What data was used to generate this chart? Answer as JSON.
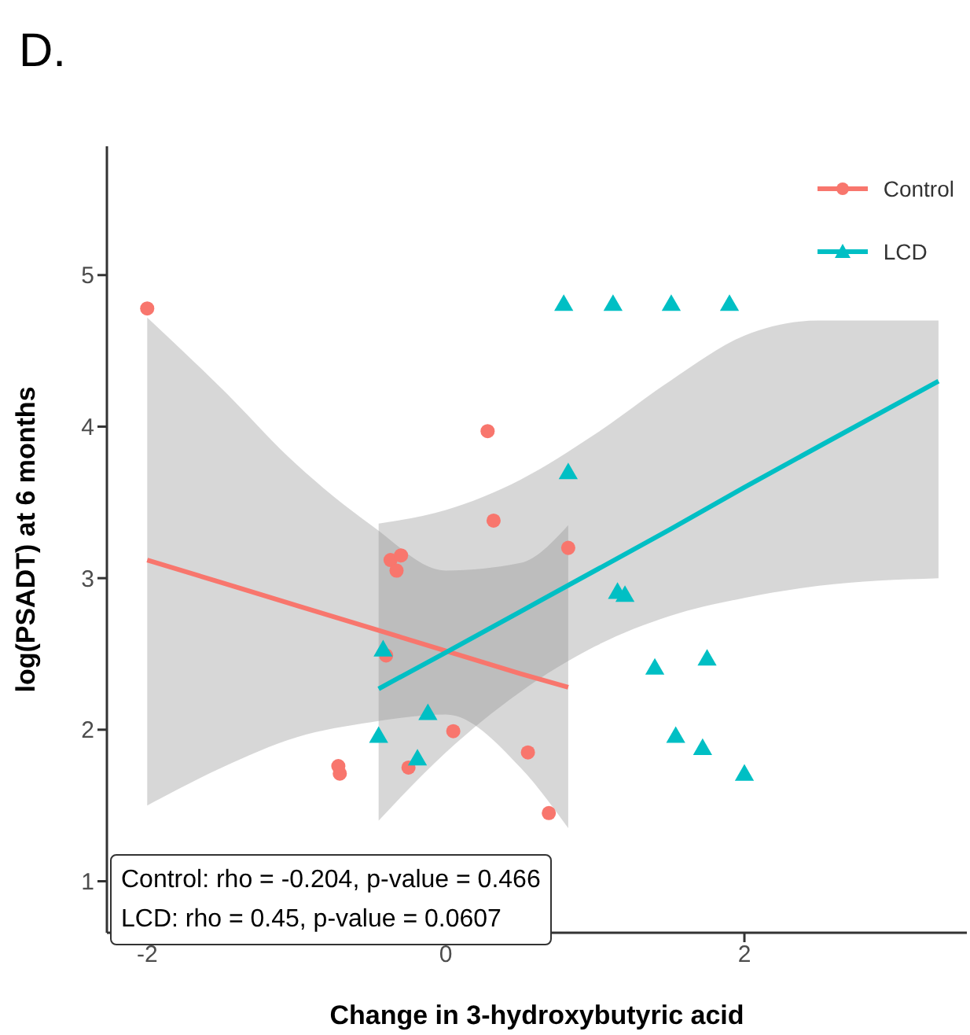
{
  "chart_data": {
    "type": "scatter",
    "title": "D.",
    "xlabel": "Change in 3-hydroxybutyric acid",
    "ylabel": "log(PSADT) at 6 months",
    "xlim": [
      -2.27,
      3.49
    ],
    "ylim": [
      0.66,
      5.85
    ],
    "xticks": [
      -2,
      0,
      2
    ],
    "yticks": [
      1,
      2,
      3,
      4,
      5
    ],
    "grid": false,
    "legend": "top right",
    "annotations": [
      "Control: rho = -0.204, p-value = 0.466",
      "LCD: rho = 0.45, p-value = 0.0607"
    ],
    "series": [
      {
        "name": "Control",
        "type": "scatter",
        "marker": "circle",
        "color": "#f8766d",
        "x": [
          -2,
          0.28,
          0.32,
          -0.37,
          -0.3,
          -0.33,
          0.82,
          -0.4,
          0.05,
          -0.25,
          0.55,
          0.69,
          -0.71,
          -0.72
        ],
        "values": [
          4.78,
          3.97,
          3.38,
          3.12,
          3.15,
          3.05,
          3.2,
          2.49,
          1.99,
          1.75,
          1.85,
          1.45,
          1.71,
          1.76
        ]
      },
      {
        "name": "LCD",
        "type": "scatter",
        "marker": "triangle",
        "color": "#00bfc4",
        "x": [
          0.79,
          1.12,
          1.51,
          1.9,
          0.82,
          1.15,
          1.2,
          -0.42,
          1.4,
          1.75,
          -0.12,
          -0.45,
          -0.19,
          1.54,
          1.72,
          2.0
        ],
        "values": [
          4.8,
          4.8,
          4.8,
          4.8,
          3.69,
          2.9,
          2.88,
          2.52,
          2.4,
          2.46,
          2.1,
          1.95,
          1.8,
          1.95,
          1.87,
          1.7
        ]
      },
      {
        "type": "line",
        "color": "#f8766d",
        "x": [
          -2,
          -1.5,
          -1,
          -0.5,
          0,
          0.5,
          0.82
        ],
        "values": [
          3.12,
          2.97,
          2.82,
          2.67,
          2.52,
          2.37,
          2.28
        ],
        "lower": [
          1.5,
          1.75,
          1.95,
          2.05,
          2.1,
          1.75,
          1.35
        ],
        "upper": [
          4.72,
          4.25,
          3.75,
          3.35,
          3.05,
          3.1,
          3.35
        ]
      },
      {
        "type": "line",
        "color": "#00bfc4",
        "x": [
          -0.45,
          0,
          0.5,
          1,
          1.5,
          2,
          2.5,
          3.3
        ],
        "values": [
          2.27,
          2.51,
          2.78,
          3.05,
          3.32,
          3.6,
          3.87,
          4.3
        ],
        "lower": [
          1.4,
          1.85,
          2.25,
          2.55,
          2.75,
          2.87,
          2.95,
          3.0
        ],
        "upper": [
          3.36,
          3.45,
          3.65,
          3.95,
          4.3,
          4.6,
          4.7,
          4.7
        ]
      }
    ]
  }
}
